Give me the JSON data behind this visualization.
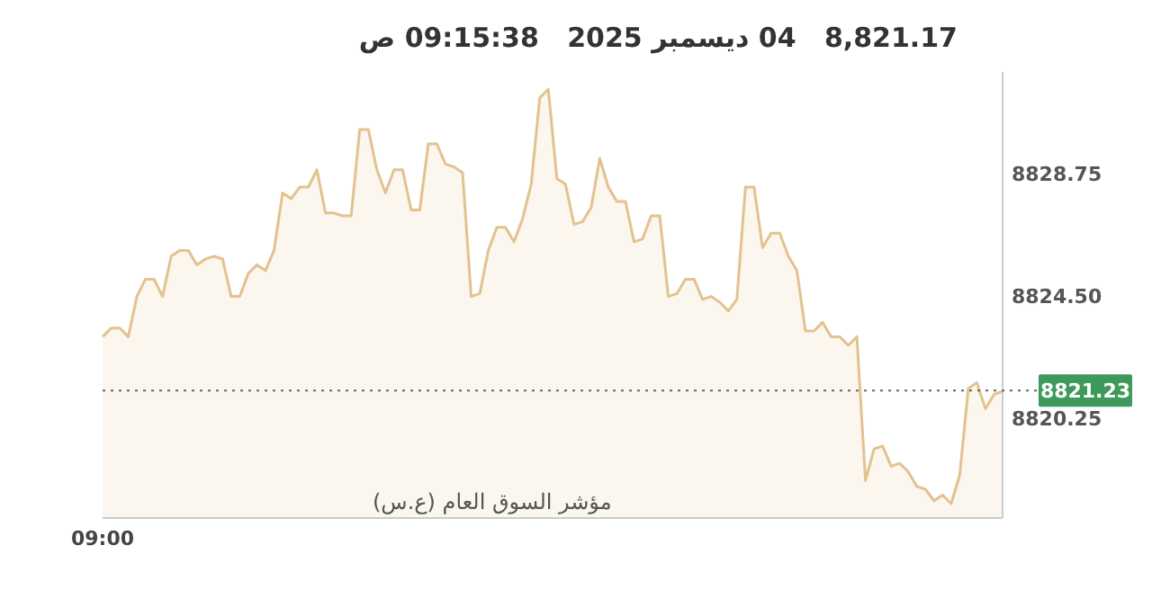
{
  "chart_data": {
    "type": "area",
    "title": "8,821.17   04 ديسمبر 2025   09:15:38 ص",
    "categories": [
      "09:00",
      null,
      null,
      null,
      null,
      null,
      null,
      null,
      null,
      null,
      null,
      null,
      null,
      null,
      null,
      null,
      null,
      null,
      null,
      null,
      null,
      null,
      null,
      null,
      null,
      null,
      null,
      null,
      null,
      null,
      null,
      null,
      null,
      null,
      null,
      null,
      null,
      null,
      null,
      null,
      null,
      null,
      null,
      null,
      null,
      null,
      null,
      null,
      null,
      null,
      null,
      null,
      null,
      null,
      null,
      null,
      null,
      null,
      null,
      null,
      null,
      null,
      null,
      null,
      null,
      null,
      null,
      null,
      null,
      null,
      null,
      null,
      null,
      null,
      null,
      null,
      null,
      null,
      null,
      null,
      null,
      null,
      null,
      null,
      null,
      null,
      null,
      null,
      null,
      null,
      null,
      null,
      null,
      null,
      null,
      null,
      null,
      null,
      null,
      null,
      null,
      null,
      null,
      null,
      null,
      null
    ],
    "series": [
      {
        "color": "#e3c28f",
        "values": [
          8823.1,
          8823.4,
          8823.4,
          8823.1,
          8824.5,
          8825.1,
          8825.1,
          8824.5,
          8825.9,
          8826.1,
          8826.1,
          8825.6,
          8825.8,
          8825.9,
          8825.8,
          8824.5,
          8824.5,
          8825.3,
          8825.6,
          8825.4,
          8826.1,
          8828.1,
          8827.9,
          8828.3,
          8828.3,
          8828.9,
          8827.4,
          8827.4,
          8827.3,
          8827.3,
          8830.3,
          8830.3,
          8828.9,
          8828.1,
          8828.9,
          8828.9,
          8827.5,
          8827.5,
          8829.8,
          8829.8,
          8829.1,
          8829.0,
          8828.8,
          8824.5,
          8824.6,
          8826.1,
          8826.9,
          8826.9,
          8826.4,
          8827.2,
          8828.4,
          8831.4,
          8831.7,
          8828.6,
          8828.4,
          8827.0,
          8827.1,
          8827.6,
          8829.3,
          8828.3,
          8827.8,
          8827.8,
          8826.4,
          8826.5,
          8827.3,
          8827.3,
          8824.5,
          8824.6,
          8825.1,
          8825.1,
          8824.4,
          8824.5,
          8824.3,
          8824.0,
          8824.4,
          8828.3,
          8828.3,
          8826.2,
          8826.7,
          8826.7,
          8825.9,
          8825.4,
          8823.3,
          8823.3,
          8823.6,
          8823.1,
          8823.1,
          8822.8,
          8823.1,
          8818.1,
          8819.2,
          8819.3,
          8818.6,
          8818.7,
          8818.4,
          8817.9,
          8817.8,
          8817.4,
          8817.6,
          8817.3,
          8818.3,
          8821.3,
          8821.5,
          8820.6,
          8821.1,
          8821.2
        ]
      }
    ],
    "ylim": [
      8816.8,
      8832.3
    ],
    "yticks": [
      8820.25,
      {
        "value": 8824.5,
        "label": "8824.50"
      },
      8828.75
    ],
    "ref_lines": [
      {
        "axis": "y",
        "value": 8821.23,
        "label": "8821.23",
        "color": "#666666",
        "line_style": "dotted"
      }
    ],
    "annotations": [
      "مؤشر السوق العام (ع.س)"
    ]
  }
}
